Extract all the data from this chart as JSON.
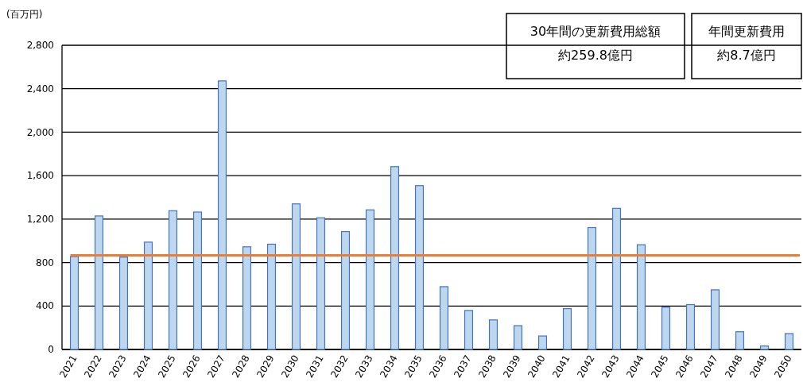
{
  "chart_data": {
    "type": "bar",
    "ylabel": "(百万円)",
    "categories": [
      "2021",
      "2022",
      "2023",
      "2024",
      "2025",
      "2026",
      "2027",
      "2028",
      "2029",
      "2030",
      "2031",
      "2032",
      "2033",
      "2034",
      "2035",
      "2036",
      "2037",
      "2038",
      "2039",
      "2040",
      "2041",
      "2042",
      "2043",
      "2044",
      "2045",
      "2046",
      "2047",
      "2048",
      "2049",
      "2050"
    ],
    "values": [
      855,
      1229,
      850,
      988,
      1277,
      1265,
      2472,
      945,
      969,
      1340,
      1212,
      1085,
      1285,
      1683,
      1508,
      578,
      359,
      272,
      219,
      124,
      376,
      1122,
      1299,
      964,
      389,
      413,
      549,
      163,
      32,
      146
    ],
    "color": "#bdd7ee",
    "ylim": [
      0,
      2800
    ],
    "yticks": [
      0,
      {
        "value": 400,
        "label": "400"
      },
      {
        "value": 800,
        "label": "800"
      },
      {
        "value": 1200,
        "label": "1,200"
      },
      {
        "value": 1600,
        "label": "1,600"
      },
      {
        "value": 2000,
        "label": "2,000"
      },
      {
        "value": 2400,
        "label": "2,400"
      },
      {
        "value": 2800,
        "label": "2,800"
      }
    ],
    "grid": "y",
    "ref_lines": [
      {
        "axis": "y",
        "value": 866,
        "color": "#ed7d31"
      }
    ],
    "annotations": [
      "30年間の更新費用総額",
      "約259.8億円",
      "年間更新費用",
      "約8.7億円"
    ]
  }
}
